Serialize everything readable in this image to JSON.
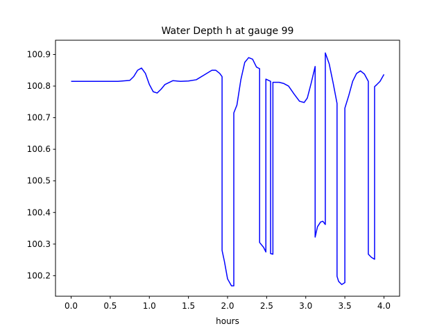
{
  "chart_data": {
    "type": "line",
    "title": "Water Depth h at gauge 99",
    "xlabel": "hours",
    "ylabel": "",
    "xlim": [
      -0.2,
      4.2
    ],
    "ylim": [
      100.135,
      100.945
    ],
    "xticks": [
      0.0,
      0.5,
      1.0,
      1.5,
      2.0,
      2.5,
      3.0,
      3.5,
      4.0
    ],
    "xtick_labels": [
      "0.0",
      "0.5",
      "1.0",
      "1.5",
      "2.0",
      "2.5",
      "3.0",
      "3.5",
      "4.0"
    ],
    "yticks": [
      100.2,
      100.3,
      100.4,
      100.5,
      100.6,
      100.7,
      100.8,
      100.9
    ],
    "ytick_labels": [
      "100.2",
      "100.3",
      "100.4",
      "100.5",
      "100.6",
      "100.7",
      "100.8",
      "100.9"
    ],
    "grid": false,
    "series": [
      {
        "color": "#0000ff",
        "x": [
          0.0,
          0.3,
          0.6,
          0.75,
          0.8,
          0.85,
          0.9,
          0.95,
          1.0,
          1.05,
          1.1,
          1.15,
          1.2,
          1.3,
          1.4,
          1.5,
          1.6,
          1.7,
          1.8,
          1.85,
          1.9,
          1.93,
          1.93,
          1.96,
          2.0,
          2.05,
          2.08,
          2.08,
          2.12,
          2.17,
          2.22,
          2.27,
          2.32,
          2.37,
          2.41,
          2.41,
          2.46,
          2.49,
          2.49,
          2.55,
          2.55,
          2.58,
          2.58,
          2.62,
          2.66,
          2.72,
          2.78,
          2.85,
          2.92,
          2.98,
          3.02,
          3.07,
          3.12,
          3.12,
          3.15,
          3.19,
          3.22,
          3.25,
          3.25,
          3.3,
          3.35,
          3.4,
          3.4,
          3.42,
          3.46,
          3.5,
          3.5,
          3.55,
          3.6,
          3.65,
          3.7,
          3.75,
          3.8,
          3.8,
          3.84,
          3.88,
          3.88,
          3.91,
          3.95,
          4.0
        ],
        "y": [
          100.815,
          100.815,
          100.815,
          100.818,
          100.83,
          100.85,
          100.857,
          100.84,
          100.805,
          100.782,
          100.778,
          100.79,
          100.805,
          100.817,
          100.815,
          100.816,
          100.82,
          100.835,
          100.85,
          100.85,
          100.84,
          100.83,
          100.28,
          100.245,
          100.19,
          100.168,
          100.168,
          100.715,
          100.74,
          100.82,
          100.875,
          100.89,
          100.885,
          100.86,
          100.855,
          100.305,
          100.29,
          100.275,
          100.822,
          100.815,
          100.27,
          100.268,
          100.812,
          100.812,
          100.812,
          100.808,
          100.8,
          100.775,
          100.752,
          100.748,
          100.762,
          100.81,
          100.862,
          100.322,
          100.355,
          100.37,
          100.372,
          100.362,
          100.905,
          100.87,
          100.81,
          100.745,
          100.198,
          100.182,
          100.172,
          100.178,
          100.73,
          100.77,
          100.815,
          100.84,
          100.848,
          100.838,
          100.815,
          100.268,
          100.258,
          100.252,
          100.798,
          100.805,
          100.815,
          100.837
        ]
      }
    ]
  }
}
